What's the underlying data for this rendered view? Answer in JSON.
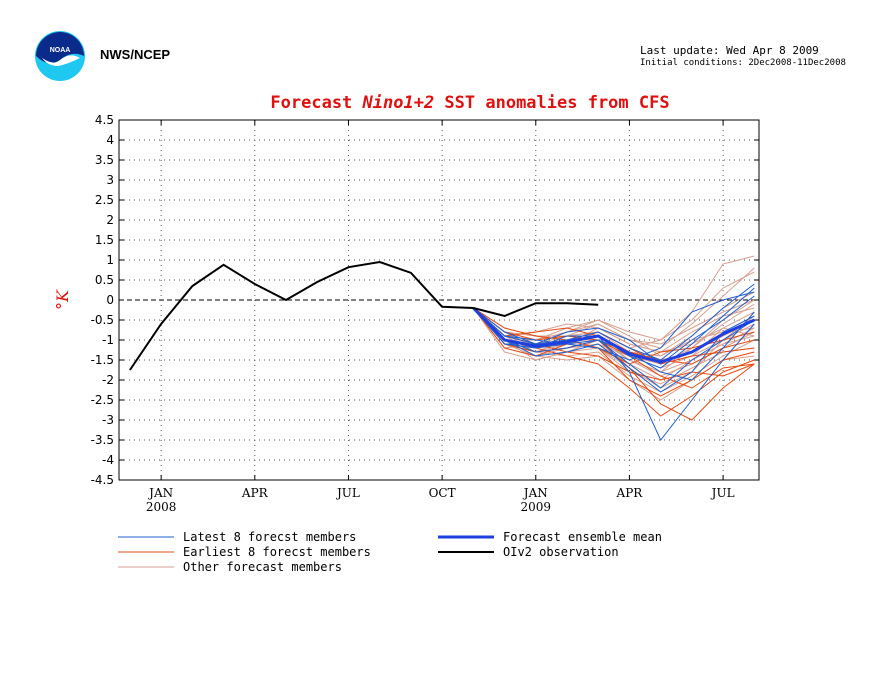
{
  "header": {
    "agency": "NWS/NCEP",
    "last_update": "Last update: Wed Apr  8 2009",
    "initial_conditions": "Initial conditions: 2Dec2008-11Dec2008"
  },
  "chart_data": {
    "type": "line",
    "title_prefix": "Forecast ",
    "title_italic": "Nino1+2",
    "title_suffix": " SST anomalies from CFS",
    "ylabel": "°K",
    "ylim": [
      -4.5,
      4.5
    ],
    "yticks": [
      4.5,
      4,
      3.5,
      3,
      2.5,
      2,
      1.5,
      1,
      0.5,
      0,
      -0.5,
      -1,
      -1.5,
      -2,
      -2.5,
      -3,
      -3.5,
      -4,
      -4.5
    ],
    "ytick_labels": [
      "4.5",
      "4",
      "3.5",
      "3",
      "2.5",
      "2",
      "1.5",
      "1",
      "0.5",
      "0",
      "-0.5",
      "-1",
      "-1.5",
      "-2",
      "-2.5",
      "-3",
      "-3.5",
      "-4",
      "-4.5"
    ],
    "x_range_months": [
      "Dec 2007",
      "Aug 2009"
    ],
    "xticks": [
      {
        "month": "Jan 2008",
        "label": "JAN",
        "year": "2008"
      },
      {
        "month": "Apr 2008",
        "label": "APR",
        "year": ""
      },
      {
        "month": "Jul 2008",
        "label": "JUL",
        "year": ""
      },
      {
        "month": "Oct 2008",
        "label": "OCT",
        "year": ""
      },
      {
        "month": "Jan 2009",
        "label": "JAN",
        "year": "2009"
      },
      {
        "month": "Apr 2009",
        "label": "APR",
        "year": ""
      },
      {
        "month": "Jul 2009",
        "label": "JUL",
        "year": ""
      }
    ],
    "grid": true,
    "zero_line": true,
    "colors": {
      "latest": "#1f5fd0",
      "earliest": "#e64a10",
      "other": "#d6a090",
      "mean": "#1f3fe0",
      "obs": "#000000",
      "title": "#e01010"
    },
    "observation": {
      "name": "OIv2 observation",
      "x": [
        "Dec 2007",
        "Jan 2008",
        "Feb 2008",
        "Mar 2008",
        "Apr 2008",
        "May 2008",
        "Jun 2008",
        "Jul 2008",
        "Aug 2008",
        "Sep 2008",
        "Oct 2008",
        "Nov 2008",
        "Dec 2008",
        "Jan 2009",
        "Feb 2009",
        "Mar 2009"
      ],
      "values": [
        -1.75,
        -0.6,
        0.35,
        0.88,
        0.4,
        0.0,
        0.45,
        0.82,
        0.95,
        0.68,
        -0.17,
        -0.2,
        -0.4,
        -0.08,
        -0.08,
        -0.12
      ]
    },
    "ensemble_mean": {
      "name": "Forecast ensemble mean",
      "x": [
        "Nov 2008",
        "Dec 2008",
        "Jan 2009",
        "Feb 2009",
        "Mar 2009",
        "Apr 2009",
        "May 2009",
        "Jun 2009",
        "Jul 2009",
        "Aug 2009"
      ],
      "values": [
        -0.2,
        -1.0,
        -1.15,
        -1.05,
        -0.9,
        -1.35,
        -1.55,
        -1.3,
        -0.85,
        -0.5
      ]
    },
    "forecast_x": [
      "Nov 2008",
      "Dec 2008",
      "Jan 2009",
      "Feb 2009",
      "Mar 2009",
      "Apr 2009",
      "May 2009",
      "Jun 2009",
      "Jul 2009",
      "Aug 2009"
    ],
    "latest_members": [
      [
        -0.2,
        -0.9,
        -1.1,
        -1.0,
        -0.8,
        -1.2,
        -1.5,
        -0.9,
        -0.2,
        0.4
      ],
      [
        -0.2,
        -1.0,
        -1.2,
        -1.1,
        -1.0,
        -1.6,
        -2.2,
        -1.5,
        -1.0,
        -0.5
      ],
      [
        -0.2,
        -1.1,
        -1.2,
        -0.9,
        -0.9,
        -1.8,
        -3.5,
        -2.5,
        -1.5,
        -0.6
      ],
      [
        -0.2,
        -0.9,
        -1.0,
        -1.1,
        -1.2,
        -1.5,
        -1.2,
        -0.3,
        0.0,
        0.2
      ],
      [
        -0.2,
        -1.0,
        -1.3,
        -1.2,
        -1.0,
        -1.3,
        -1.8,
        -2.0,
        -1.2,
        -0.3
      ],
      [
        -0.2,
        -0.8,
        -1.1,
        -0.8,
        -0.7,
        -1.0,
        -1.6,
        -1.0,
        -0.5,
        0.1
      ],
      [
        -0.2,
        -1.0,
        -1.4,
        -1.3,
        -1.1,
        -1.7,
        -2.3,
        -1.8,
        -0.8,
        -0.4
      ],
      [
        -0.2,
        -1.1,
        -1.1,
        -1.0,
        -0.9,
        -1.4,
        -1.7,
        -1.1,
        -0.4,
        0.3
      ]
    ],
    "earliest_members": [
      [
        -0.2,
        -0.8,
        -1.0,
        -0.9,
        -1.0,
        -1.4,
        -1.9,
        -2.2,
        -1.7,
        -1.6
      ],
      [
        -0.2,
        -1.1,
        -1.3,
        -1.2,
        -1.0,
        -1.7,
        -2.6,
        -3.0,
        -2.2,
        -1.6
      ],
      [
        -0.2,
        -0.9,
        -0.8,
        -0.7,
        -0.9,
        -1.3,
        -1.5,
        -1.6,
        -1.2,
        -1.0
      ],
      [
        -0.2,
        -1.0,
        -1.2,
        -1.0,
        -1.2,
        -2.0,
        -2.4,
        -2.0,
        -1.5,
        -1.3
      ],
      [
        -0.2,
        -0.9,
        -1.1,
        -1.3,
        -1.4,
        -1.8,
        -2.0,
        -1.8,
        -1.9,
        -1.6
      ],
      [
        -0.2,
        -1.2,
        -1.4,
        -1.1,
        -1.2,
        -1.6,
        -1.3,
        -1.2,
        -1.0,
        -0.8
      ],
      [
        -0.2,
        -0.7,
        -0.9,
        -1.0,
        -0.8,
        -1.2,
        -1.6,
        -1.4,
        -1.3,
        -1.2
      ],
      [
        -0.2,
        -1.0,
        -1.2,
        -1.4,
        -1.6,
        -2.2,
        -2.9,
        -2.4,
        -1.8,
        -1.5
      ]
    ],
    "other_members": [
      [
        -0.2,
        -0.9,
        -1.1,
        -0.9,
        -0.6,
        -1.0,
        -1.2,
        -0.6,
        0.1,
        0.8
      ],
      [
        -0.2,
        -1.0,
        -1.2,
        -1.1,
        -0.8,
        -1.2,
        -1.0,
        -0.3,
        0.9,
        1.1
      ],
      [
        -0.2,
        -1.1,
        -1.3,
        -1.0,
        -0.9,
        -1.5,
        -1.8,
        -1.2,
        -0.5,
        0.0
      ],
      [
        -0.2,
        -0.8,
        -1.0,
        -0.8,
        -0.5,
        -0.9,
        -1.4,
        -1.0,
        -0.8,
        -0.7
      ],
      [
        -0.2,
        -1.2,
        -1.4,
        -1.2,
        -1.1,
        -1.6,
        -2.0,
        -1.5,
        -1.1,
        -0.9
      ],
      [
        -0.2,
        -0.9,
        -0.8,
        -0.6,
        -0.7,
        -1.1,
        -1.3,
        -0.8,
        -0.4,
        -0.2
      ],
      [
        -0.2,
        -1.0,
        -1.5,
        -1.3,
        -1.0,
        -1.4,
        -1.6,
        -1.4,
        -1.0,
        -0.6
      ],
      [
        -0.2,
        -0.7,
        -0.9,
        -1.0,
        -1.2,
        -1.8,
        -2.1,
        -1.7,
        -1.3,
        -1.2
      ],
      [
        -0.2,
        -1.1,
        -1.2,
        -1.1,
        -0.9,
        -1.3,
        -1.4,
        -0.9,
        -0.2,
        0.2
      ],
      [
        -0.2,
        -0.9,
        -1.3,
        -1.4,
        -1.3,
        -1.9,
        -2.3,
        -1.9,
        -1.4,
        -1.0
      ],
      [
        -0.2,
        -1.0,
        -1.0,
        -0.9,
        -0.8,
        -1.2,
        -1.5,
        -1.3,
        -0.9,
        -0.5
      ],
      [
        -0.2,
        -1.2,
        -1.1,
        -0.8,
        -0.6,
        -1.0,
        -1.1,
        -0.7,
        -0.3,
        0.0
      ],
      [
        -0.2,
        -0.8,
        -1.2,
        -1.1,
        -1.0,
        -1.5,
        -1.9,
        -1.6,
        -1.2,
        -0.8
      ],
      [
        -0.2,
        -1.1,
        -1.4,
        -1.5,
        -1.4,
        -2.0,
        -2.5,
        -2.0,
        -1.5,
        -1.4
      ],
      [
        -0.2,
        -0.9,
        -1.0,
        -0.7,
        -0.5,
        -0.8,
        -1.0,
        -0.5,
        0.3,
        0.7
      ],
      [
        -0.2,
        -1.0,
        -1.3,
        -1.2,
        -1.1,
        -1.4,
        -1.7,
        -1.4,
        -0.7,
        -0.3
      ],
      [
        -0.2,
        -1.3,
        -1.5,
        -1.3,
        -1.2,
        -1.7,
        -2.2,
        -1.8,
        -1.0,
        -0.4
      ],
      [
        -0.2,
        -0.8,
        -0.9,
        -0.9,
        -0.8,
        -1.3,
        -1.6,
        -1.2,
        -0.6,
        -0.1
      ],
      [
        -0.2,
        -1.0,
        -1.1,
        -1.0,
        -1.0,
        -1.5,
        -1.8,
        -1.5,
        -1.1,
        -0.7
      ],
      [
        -0.2,
        -1.1,
        -1.3,
        -1.1,
        -0.7,
        -1.1,
        -1.3,
        -1.1,
        -0.7,
        -0.9
      ]
    ],
    "legend": {
      "latest": "Latest 8 forecst members",
      "earliest": "Earliest 8 forecst members",
      "other": "Other forecast members",
      "mean": "Forecast ensemble mean",
      "obs": "OIv2 observation"
    }
  }
}
